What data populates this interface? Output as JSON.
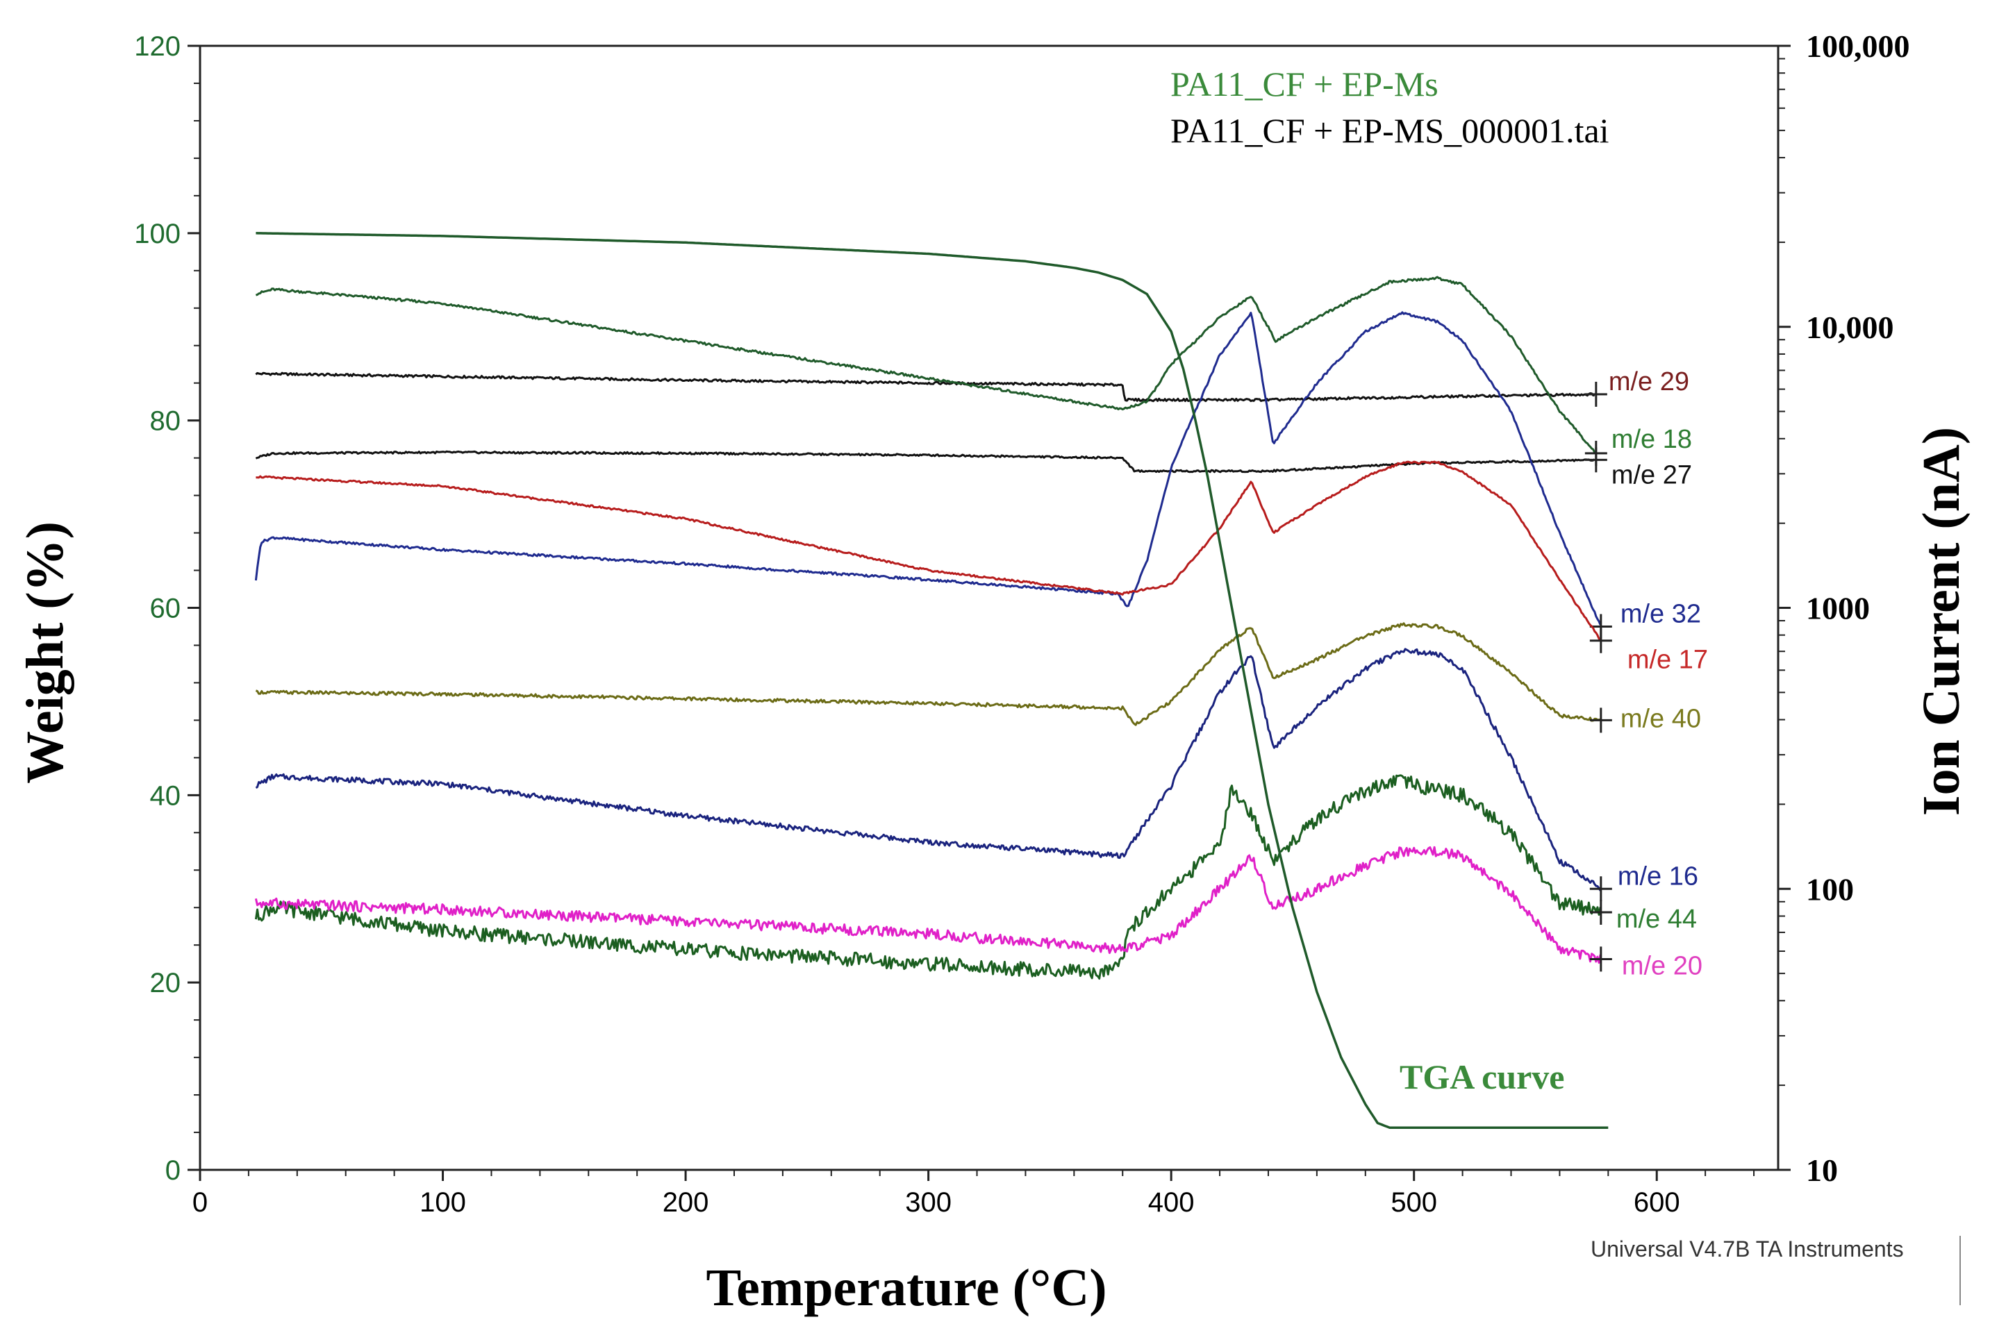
{
  "chart_data": {
    "type": "line",
    "title": "",
    "legend": [
      {
        "text": "PA11_CF + EP-Ms",
        "color": "#3a8a3a"
      },
      {
        "text": "PA11_CF + EP-MS_000001.tai",
        "color": "#000000"
      }
    ],
    "xlabel": "Temperature (°C)",
    "ylabel_left": "Weight (%)",
    "ylabel_right": "Ion Current (nA)",
    "xlim": [
      0,
      650
    ],
    "ylim_left": [
      0,
      120
    ],
    "ylim_right": [
      10,
      100000
    ],
    "right_axis_scale": "log",
    "x_ticks": [
      "0",
      "100",
      "200",
      "300",
      "400",
      "500",
      "600"
    ],
    "y_left_ticks": [
      "0",
      "20",
      "40",
      "60",
      "80",
      "100",
      "120"
    ],
    "y_right_ticks": [
      "10",
      "100",
      "1000",
      "10,000",
      "100,000"
    ],
    "annotation": "TGA curve",
    "footer": "Universal V4.7B TA Instruments",
    "tga_series": {
      "name": "TGA curve",
      "color": "#1f5a2a",
      "x": [
        23,
        100,
        200,
        300,
        340,
        360,
        370,
        380,
        390,
        400,
        405,
        410,
        415,
        420,
        430,
        440,
        450,
        460,
        470,
        480,
        485,
        490,
        500,
        580
      ],
      "y": [
        100,
        99.7,
        99.0,
        97.8,
        97.0,
        96.3,
        95.8,
        95.0,
        93.5,
        89.5,
        85.5,
        80,
        74,
        67,
        53,
        39,
        28,
        19,
        12,
        7,
        5,
        4.5,
        4.5,
        4.5
      ]
    },
    "series": [
      {
        "name": "m/e 29",
        "label": "m/e 29",
        "color": "#7a1f1f",
        "line_color": "#111111",
        "x": [
          23,
          100,
          200,
          300,
          380,
          381,
          440,
          500,
          575
        ],
        "y": [
          85,
          84.7,
          84.3,
          84.0,
          83.8,
          82.2,
          82.2,
          82.5,
          82.8
        ]
      },
      {
        "name": "m/e 18",
        "label": "m/e 18",
        "color": "#2e7d32",
        "line_color": "#1f5a2a",
        "x": [
          23,
          30,
          100,
          200,
          300,
          380,
          390,
          400,
          420,
          433,
          443,
          460,
          490,
          510,
          520,
          540,
          560,
          575
        ],
        "y": [
          93.5,
          94,
          92.5,
          88.5,
          84.5,
          81.2,
          82,
          86,
          91,
          93.3,
          88.5,
          91,
          94.8,
          95.2,
          94.5,
          89,
          81,
          76.5
        ]
      },
      {
        "name": "m/e 27",
        "label": "m/e 27",
        "color": "#111111",
        "line_color": "#111111",
        "x": [
          23,
          30,
          100,
          200,
          300,
          380,
          385,
          440,
          500,
          575
        ],
        "y": [
          76,
          76.5,
          76.6,
          76.5,
          76.3,
          76,
          74.6,
          74.6,
          75.4,
          75.8
        ]
      },
      {
        "name": "m/e 32",
        "label": "m/e 32",
        "color": "#1f2b8f",
        "line_color": "#1f2b8f",
        "x": [
          23,
          25,
          30,
          100,
          200,
          300,
          378,
          382,
          390,
          400,
          420,
          433,
          442,
          460,
          480,
          495,
          510,
          520,
          540,
          560,
          577
        ],
        "y": [
          63,
          67,
          67.5,
          66.2,
          64.7,
          63,
          61.5,
          60,
          65,
          75,
          87,
          91.5,
          77.5,
          84,
          89.5,
          91.5,
          90.5,
          88.5,
          81,
          68,
          58
        ]
      },
      {
        "name": "m/e 17",
        "label": "m/e 17",
        "color": "#c62828",
        "line_color": "#b71c1c",
        "x": [
          23,
          100,
          200,
          300,
          380,
          400,
          420,
          433,
          442,
          460,
          480,
          495,
          510,
          520,
          540,
          560,
          577
        ],
        "y": [
          74,
          73,
          69.5,
          64,
          61.5,
          62.5,
          68.5,
          73.5,
          68,
          71,
          74,
          75.5,
          75.5,
          74.5,
          71,
          63,
          56.5
        ]
      },
      {
        "name": "m/e 40",
        "label": "m/e 40",
        "color": "#7a7a1e",
        "line_color": "#6b6b16",
        "x": [
          23,
          100,
          200,
          300,
          380,
          385,
          400,
          420,
          433,
          442,
          460,
          480,
          495,
          510,
          520,
          540,
          560,
          577
        ],
        "y": [
          51,
          50.8,
          50.3,
          49.8,
          49.3,
          47.5,
          50,
          55.5,
          58,
          52.5,
          54.5,
          57,
          58.2,
          58,
          57,
          53,
          48.5,
          48
        ]
      },
      {
        "name": "m/e 16",
        "label": "m/e 16",
        "color": "#1f2b8f",
        "line_color": "#1a237e",
        "x": [
          23,
          30,
          100,
          200,
          300,
          380,
          400,
          420,
          433,
          442,
          460,
          480,
          495,
          510,
          520,
          540,
          560,
          577
        ],
        "y": [
          41,
          42,
          41.2,
          37.8,
          35,
          33.5,
          41,
          51,
          55,
          45,
          49.5,
          53.5,
          55.5,
          55,
          53.5,
          44,
          33,
          30
        ]
      },
      {
        "name": "m/e 44",
        "label": "m/e 44",
        "color": "#2e7d32",
        "line_color": "#1b5e20",
        "x": [
          23,
          30,
          100,
          200,
          300,
          370,
          380,
          382,
          400,
          420,
          425,
          433,
          442,
          460,
          480,
          495,
          510,
          520,
          540,
          560,
          577
        ],
        "y": [
          27,
          28,
          25.5,
          23.5,
          22,
          21,
          22.5,
          25.5,
          30,
          34.5,
          41,
          38,
          33,
          37.5,
          40.5,
          41.5,
          40.5,
          40,
          36,
          28.5,
          27.5
        ]
      },
      {
        "name": "m/e 20",
        "label": "m/e 20",
        "color": "#e040c0",
        "line_color": "#e020c8",
        "x": [
          23,
          100,
          200,
          300,
          380,
          400,
          420,
          433,
          442,
          460,
          480,
          495,
          510,
          520,
          540,
          560,
          577
        ],
        "y": [
          28.5,
          27.8,
          26.5,
          25.2,
          23.5,
          25,
          30,
          33.5,
          28,
          30,
          32.5,
          34,
          34,
          33.5,
          29.5,
          23.5,
          22.5
        ]
      }
    ]
  }
}
